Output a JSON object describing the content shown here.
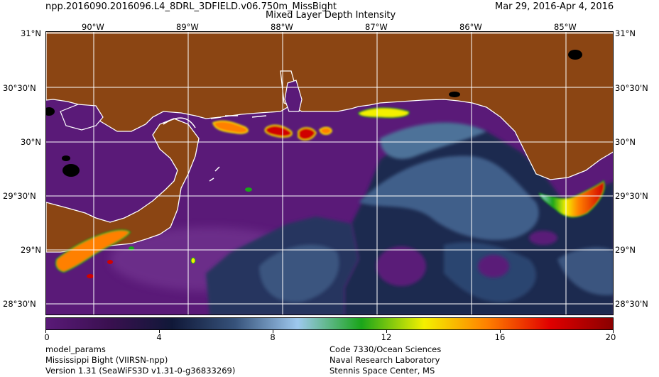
{
  "header": {
    "filename": "npp.2016090.2016096.L4_8DRL_3DFIELD.v06.750m_MissBight",
    "product": "Mixed Layer Depth Intensity",
    "date_range": "Mar 29, 2016-Apr  4, 2016"
  },
  "map": {
    "lon_labels": [
      "90°W",
      "89°W",
      "88°W",
      "87°W",
      "86°W",
      "85°W"
    ],
    "lat_labels": [
      "31°N",
      "30°30'N",
      "30°N",
      "29°30'N",
      "29°N",
      "28°30'N"
    ],
    "colors": {
      "land": "#8B4513",
      "coastline": "#ffffff",
      "lakes": "#000000",
      "grid": "#ffffff",
      "ocean_low": "#5a1a78"
    }
  },
  "colorbar": {
    "min": 0,
    "max": 20,
    "tick_labels": [
      "0",
      "4",
      "8",
      "12",
      "16",
      "20"
    ],
    "colors": [
      "#5a1a78",
      "#3a1050",
      "#101838",
      "#36527a",
      "#9ec8ee",
      "#1aa51a",
      "#f4f000",
      "#ff8000",
      "#e00000",
      "#8a0000"
    ]
  },
  "footer": {
    "left": [
      "model_params",
      "Mississippi Bight (VIIRSN-npp)",
      "Version 1.31 (SeaWiFS3D v1.31-0-g36833269)"
    ],
    "right": [
      "Code 7330/Ocean Sciences",
      "Naval Research Laboratory",
      "Stennis Space Center, MS"
    ]
  }
}
